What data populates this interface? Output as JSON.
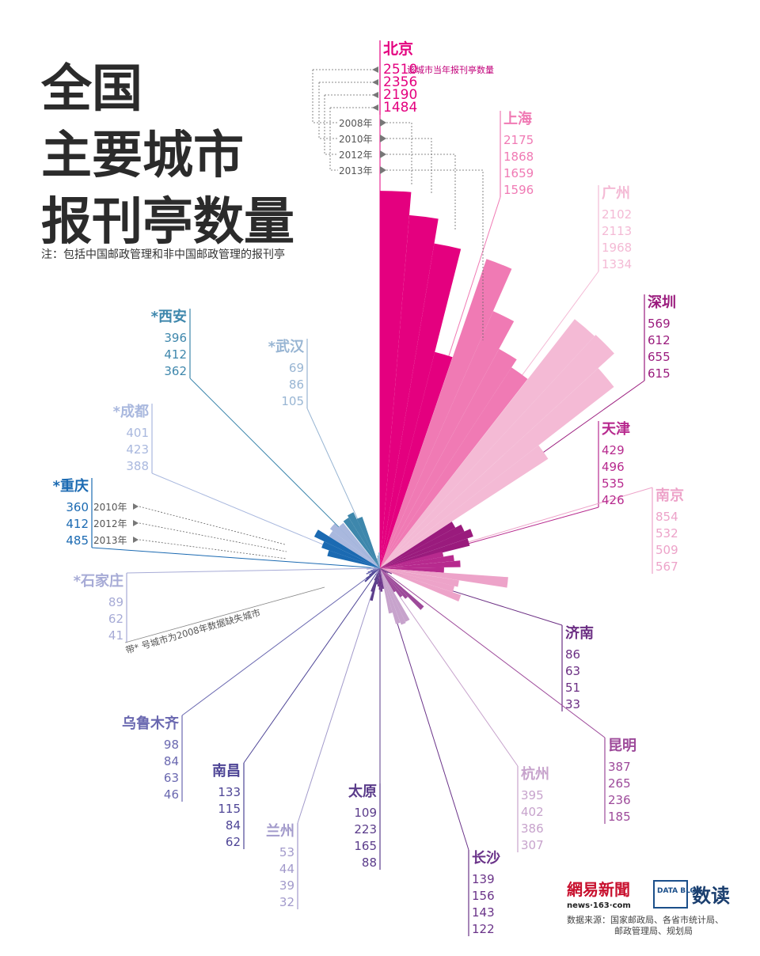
{
  "title_lines": [
    "全国",
    "主要城市",
    "报刊亭数量"
  ],
  "note": "注：包括中国邮政管理和非中国邮政管理的报刊亭",
  "legend": {
    "value_caption": "该城市当年报刊亭数量",
    "years": [
      "2008年",
      "2010年",
      "2012年",
      "2013年"
    ],
    "chongqing_years": [
      "2010年",
      "2012年",
      "2013年"
    ],
    "missing_note": "带* 号城市为2008年数据缺失城市"
  },
  "logos": {
    "netease_logo_text": "網易新聞",
    "netease_url": "news·163·com",
    "datablog_text": "DATA BLOG",
    "shudu": "数读"
  },
  "source": {
    "line1": "数据来源：国家邮政局、各省市统计局、",
    "line2": "邮政管理局、规划局"
  },
  "colors": {
    "beijing": "#e4007f",
    "shanghai": "#f07ab4",
    "guangzhou": "#f4bad5",
    "shenzhen": "#9a1b7d",
    "tianjin": "#b72a8e",
    "nanjing": "#eda3c9",
    "jinan": "#6b2e83",
    "kunming": "#9d4a9a",
    "hangzhou": "#c7a3cc",
    "changsha": "#6a3389",
    "taiyuan": "#5a3b8a",
    "lanzhou": "#a29acb",
    "nanchang": "#4e4596",
    "urumqi": "#6a68b0",
    "shijiazhuang": "#a7abd6",
    "chongqing": "#1b6ab2",
    "chengdu": "#a9b8de",
    "xian": "#3e87ac",
    "wuhan": "#98b5d3"
  },
  "chart_data": {
    "type": "polar-bar",
    "title": "全国主要城市报刊亭数量",
    "series_years": [
      "2008年",
      "2010年",
      "2012年",
      "2013年"
    ],
    "cities": [
      {
        "name": "北京",
        "star": false,
        "values": [
          2510,
          2356,
          2190,
          1484
        ]
      },
      {
        "name": "上海",
        "star": false,
        "values": [
          2175,
          1868,
          1659,
          1596
        ]
      },
      {
        "name": "广州",
        "star": false,
        "values": [
          2102,
          2113,
          1968,
          1334
        ]
      },
      {
        "name": "深圳",
        "star": false,
        "values": [
          569,
          612,
          655,
          615
        ]
      },
      {
        "name": "天津",
        "star": false,
        "values": [
          429,
          496,
          535,
          426
        ]
      },
      {
        "name": "南京",
        "star": false,
        "values": [
          854,
          532,
          509,
          567
        ]
      },
      {
        "name": "济南",
        "star": false,
        "values": [
          86,
          63,
          51,
          33
        ]
      },
      {
        "name": "昆明",
        "star": false,
        "values": [
          387,
          265,
          236,
          185
        ]
      },
      {
        "name": "杭州",
        "star": false,
        "values": [
          395,
          402,
          386,
          307
        ]
      },
      {
        "name": "长沙",
        "star": false,
        "values": [
          139,
          156,
          143,
          122
        ]
      },
      {
        "name": "太原",
        "star": false,
        "values": [
          109,
          223,
          165,
          88
        ]
      },
      {
        "name": "兰州",
        "star": false,
        "values": [
          53,
          44,
          39,
          32
        ]
      },
      {
        "name": "南昌",
        "star": false,
        "values": [
          133,
          115,
          84,
          62
        ]
      },
      {
        "name": "乌鲁木齐",
        "star": false,
        "values": [
          98,
          84,
          63,
          46
        ]
      },
      {
        "name": "石家庄",
        "star": true,
        "values": [
          89,
          62,
          41
        ]
      },
      {
        "name": "重庆",
        "star": true,
        "values": [
          360,
          412,
          485
        ]
      },
      {
        "name": "成都",
        "star": true,
        "values": [
          401,
          423,
          388
        ]
      },
      {
        "name": "西安",
        "star": true,
        "values": [
          396,
          412,
          362
        ]
      },
      {
        "name": "武汉",
        "star": true,
        "values": [
          69,
          86,
          105
        ]
      }
    ]
  }
}
